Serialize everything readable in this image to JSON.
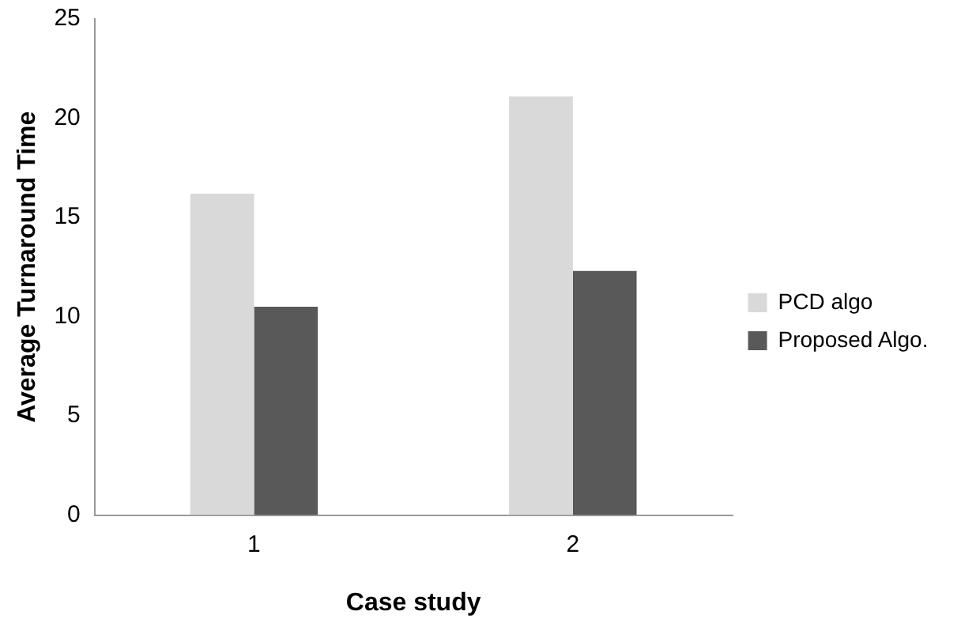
{
  "chart_data": {
    "type": "bar",
    "xlabel": "Case study",
    "ylabel": "Average Turnaround Time",
    "categories": [
      "1",
      "2"
    ],
    "series": [
      {
        "name": "PCD algo",
        "color": "#d9d9d9",
        "values": [
          16.2,
          21.1
        ]
      },
      {
        "name": "Proposed Algo.",
        "color": "#595959",
        "values": [
          10.5,
          12.3
        ]
      }
    ],
    "ylim": [
      0,
      25
    ],
    "yticks": [
      0,
      5,
      10,
      15,
      20,
      25
    ],
    "grid": false,
    "legend": "right"
  }
}
